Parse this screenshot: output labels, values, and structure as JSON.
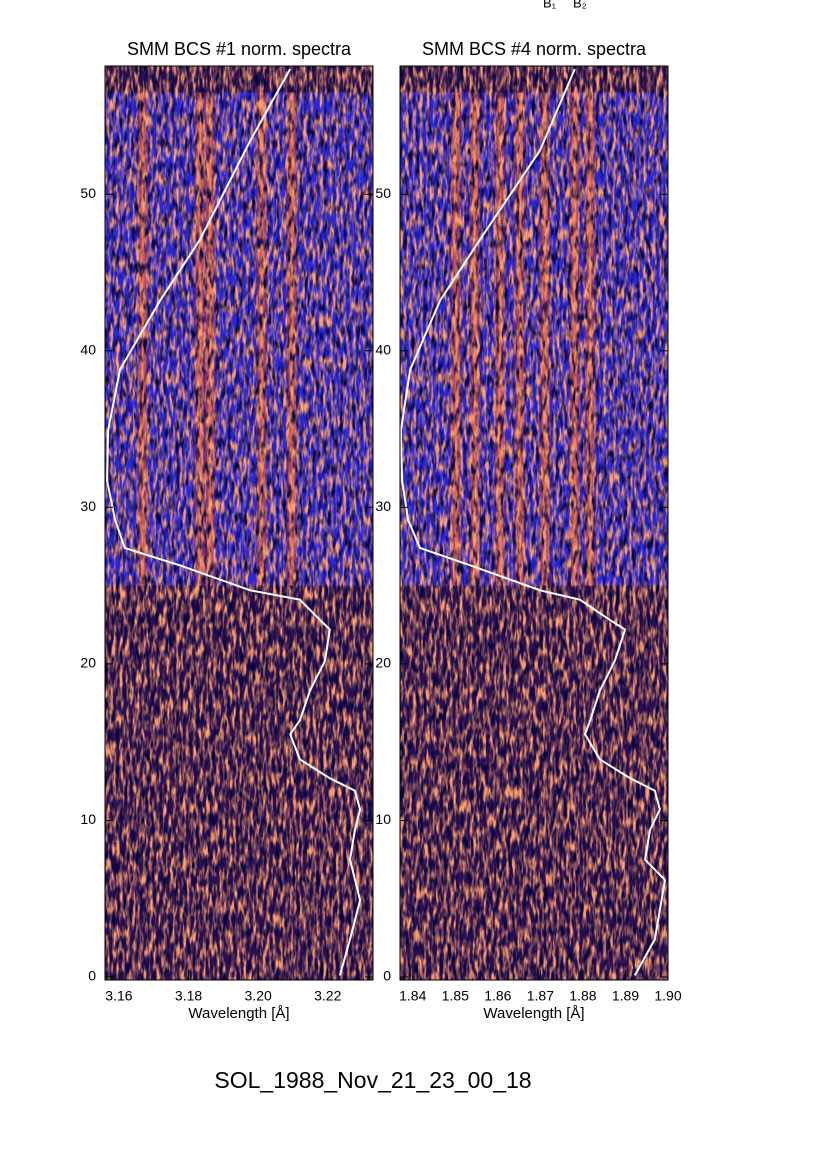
{
  "chart_data": [
    {
      "type": "spectrogram",
      "title": "SMM BCS #1 norm. spectra",
      "xlabel": "Wavelength [Å]",
      "xlim": [
        3.156,
        3.233
      ],
      "xticks": [
        3.16,
        3.18,
        {
          "value": 3.2,
          "label": "3.20"
        },
        3.22
      ],
      "ylim": [
        0,
        58
      ],
      "yticks": [
        0,
        10,
        20,
        30,
        40,
        50
      ],
      "flare_time": [
        25,
        56.5
      ],
      "emission_lines": [
        3.1669,
        3.1833,
        3.1862,
        3.2011,
        3.2097
      ],
      "curve": {
        "color": "#ffffff",
        "x": [
          3.2092,
          3.1977,
          3.1833,
          3.1718,
          3.1603,
          3.1569,
          3.1566,
          3.1589,
          3.1617,
          3.1775,
          3.1977,
          3.212,
          3.2178,
          3.2206,
          3.2192,
          3.2149,
          3.212,
          3.2092,
          3.212,
          3.2206,
          3.2278,
          3.2293,
          3.2278,
          3.2264,
          3.2293,
          3.2264,
          3.2235
        ],
        "y": [
          58,
          53.4,
          47.1,
          43.2,
          38.8,
          34.9,
          31.7,
          29.2,
          27.4,
          26.3,
          24.7,
          24.1,
          22.8,
          22.2,
          20.2,
          18.3,
          16.4,
          15.5,
          13.9,
          12.7,
          11.9,
          10.7,
          9.4,
          7.5,
          4.9,
          2.4,
          0.1
        ]
      }
    },
    {
      "type": "spectrogram",
      "title": "SMM BCS #4 norm. spectra",
      "xlabel": "Wavelength [Å]",
      "xlim": [
        1.837,
        1.9
      ],
      "xticks": [
        1.84,
        1.85,
        1.86,
        1.87,
        1.88,
        1.89,
        {
          "value": 1.9,
          "label": "1.90"
        }
      ],
      "ylim": [
        0,
        58
      ],
      "yticks": [
        0,
        10,
        20,
        30,
        40,
        50
      ],
      "flare_time": [
        25,
        56.5
      ],
      "emission_lines": [
        1.8502,
        1.8546,
        1.8605,
        1.8652,
        1.8711,
        1.8781,
        1.8817
      ],
      "curve": {
        "color": "#ffffff",
        "x": [
          1.8781,
          1.8699,
          1.8558,
          1.8464,
          1.8394,
          1.8372,
          1.8375,
          1.8389,
          1.8417,
          1.8535,
          1.8699,
          1.8793,
          1.8864,
          1.8899,
          1.8875,
          1.884,
          1.8817,
          1.8805,
          1.884,
          1.8911,
          1.8969,
          1.8981,
          1.8958,
          1.8946,
          1.8993,
          1.8969,
          1.8922
        ],
        "y": [
          58,
          52.8,
          47.1,
          43.2,
          38.8,
          34.9,
          31.7,
          29.2,
          27.4,
          26.3,
          24.7,
          24.1,
          22.8,
          22.2,
          20.2,
          18.3,
          16.4,
          15.5,
          13.9,
          12.7,
          11.9,
          10.7,
          9.4,
          7.5,
          6.2,
          2.4,
          0.1
        ]
      }
    }
  ],
  "annotations": [
    "B₁",
    "B₂"
  ],
  "footer": "SOL_1988_Nov_21_23_00_18"
}
